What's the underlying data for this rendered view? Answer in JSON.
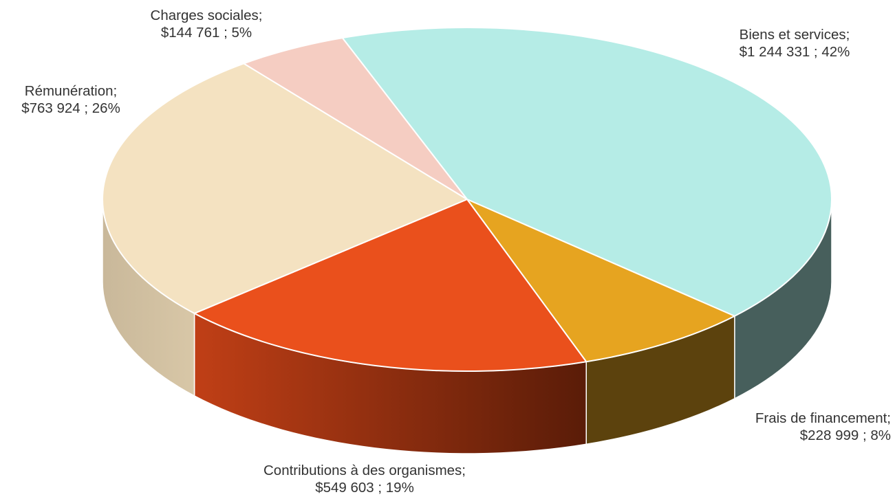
{
  "chart_data": {
    "type": "pie",
    "title": "",
    "style": "3d",
    "slices": [
      {
        "category": "Biens et services;",
        "value_text": "$1 244 331 ; 42%",
        "value": 1244331,
        "percent": 42,
        "color": "#b5ece6",
        "side_color": "#475f5c"
      },
      {
        "category": "Frais de financement;",
        "value_text": "$228 999 ; 8%",
        "value": 228999,
        "percent": 8,
        "color": "#e6a420",
        "side_color": "#5c420d"
      },
      {
        "category": "Contributions à des organismes;",
        "value_text": "$549 603 ; 19%",
        "value": 549603,
        "percent": 19,
        "color": "#ea501c",
        "side_color": "#bb3e14"
      },
      {
        "category": "Rémunération;",
        "value_text": "$763 924 ; 26%",
        "value": 763924,
        "percent": 26,
        "color": "#f4e2c1",
        "side_color": "#d3c2a2"
      },
      {
        "category": "Charges sociales;",
        "value_text": "$144 761 ; 5%",
        "value": 144761,
        "percent": 5,
        "color": "#f5cdc2",
        "side_color": "#c9a89f"
      }
    ]
  }
}
